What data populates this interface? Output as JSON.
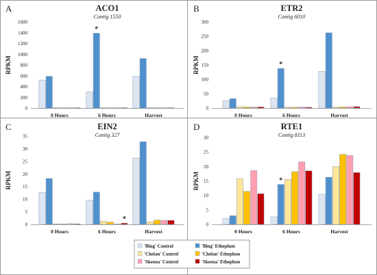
{
  "chart_data": [
    {
      "type": "bar",
      "panel_letter": "A",
      "title": "ACO1",
      "subtitle": "Contig 1550",
      "ylabel": "RPKM",
      "ylim": [
        0,
        1600
      ],
      "yticks": [
        0,
        200,
        400,
        600,
        800,
        1000,
        1200,
        1400,
        1600
      ],
      "categories": [
        "0 Hours",
        "6 Hours",
        "Harvest"
      ],
      "series": [
        {
          "name": "'Bing' Control",
          "values": [
            520,
            300,
            590
          ]
        },
        {
          "name": "'Bing' Ethephon",
          "values": [
            590,
            1390,
            920
          ]
        },
        {
          "name": "'Chelan' Control",
          "values": [
            3,
            3,
            3
          ]
        },
        {
          "name": "'Chelan' Ethephon",
          "values": [
            3,
            3,
            3
          ]
        },
        {
          "name": "'Skeena' Control",
          "values": [
            3,
            3,
            3
          ]
        },
        {
          "name": "'Skeena' Ethephon",
          "values": [
            3,
            3,
            3
          ]
        }
      ],
      "annotations": [
        {
          "category": "6 Hours",
          "series": "'Bing' Ethephon",
          "text": "*"
        }
      ]
    },
    {
      "type": "bar",
      "panel_letter": "B",
      "title": "ETR2",
      "subtitle": "Contig 6010",
      "ylabel": "RPKM",
      "ylim": [
        0,
        300
      ],
      "yticks": [
        0,
        50,
        100,
        150,
        200,
        250,
        300
      ],
      "categories": [
        "0 Hours",
        "6 Hours",
        "Harvest"
      ],
      "series": [
        {
          "name": "'Bing' Control",
          "values": [
            25,
            35,
            128
          ]
        },
        {
          "name": "'Bing' Ethephon",
          "values": [
            33,
            138,
            262
          ]
        },
        {
          "name": "'Chelan' Control",
          "values": [
            5,
            4,
            4
          ]
        },
        {
          "name": "'Chelan' Ethephon",
          "values": [
            4,
            3,
            4
          ]
        },
        {
          "name": "'Skeena' Control",
          "values": [
            4,
            4,
            5
          ]
        },
        {
          "name": "'Skeena' Ethephon",
          "values": [
            4,
            3,
            5
          ]
        }
      ],
      "annotations": [
        {
          "category": "6 Hours",
          "series": "'Bing' Ethephon",
          "text": "*"
        }
      ]
    },
    {
      "type": "bar",
      "panel_letter": "C",
      "title": "EIN2",
      "subtitle": "Contig 327",
      "ylabel": "RPKM",
      "ylim": [
        0,
        35
      ],
      "yticks": [
        0,
        5,
        10,
        15,
        20,
        25,
        30,
        35
      ],
      "categories": [
        "0 Hours",
        "6 Hours",
        "Harvest"
      ],
      "series": [
        {
          "name": "'Bing' Control",
          "values": [
            12.6,
            9.6,
            26.3
          ]
        },
        {
          "name": "'Bing' Ethephon",
          "values": [
            18.2,
            12.8,
            32.8
          ]
        },
        {
          "name": "'Chelan' Control",
          "values": [
            0.2,
            1.3,
            1.0
          ]
        },
        {
          "name": "'Chelan' Ethephon",
          "values": [
            0.1,
            0.9,
            1.7
          ]
        },
        {
          "name": "'Skeena' Control",
          "values": [
            0.3,
            0.1,
            1.6
          ]
        },
        {
          "name": "'Skeena' Ethephon",
          "values": [
            0.2,
            0.5,
            1.6
          ]
        }
      ],
      "annotations": [
        {
          "category": "6 Hours",
          "series": "'Skeena' Ethephon",
          "text": "*"
        }
      ]
    },
    {
      "type": "bar",
      "panel_letter": "D",
      "title": "RTE1",
      "subtitle": "Contig 8113",
      "ylabel": "RPKM",
      "ylim": [
        0,
        30
      ],
      "yticks": [
        0,
        5,
        10,
        15,
        20,
        25,
        30
      ],
      "categories": [
        "0 Hours",
        "6 Hours",
        "Harvest"
      ],
      "series": [
        {
          "name": "'Bing' Control",
          "values": [
            2.0,
            2.6,
            10.4
          ]
        },
        {
          "name": "'Bing' Ethephon",
          "values": [
            3.0,
            13.8,
            16.3
          ]
        },
        {
          "name": "'Chelan' Control",
          "values": [
            15.8,
            15.5,
            20.0
          ]
        },
        {
          "name": "'Chelan' Ethephon",
          "values": [
            11.4,
            18.2,
            24.2
          ]
        },
        {
          "name": "'Skeena' Control",
          "values": [
            18.6,
            21.6,
            23.8
          ]
        },
        {
          "name": "'Skeena' Ethephon",
          "values": [
            10.6,
            18.5,
            17.9
          ]
        }
      ],
      "annotations": [
        {
          "category": "6 Hours",
          "series": "'Bing' Ethephon",
          "text": "*"
        }
      ]
    }
  ],
  "legend": {
    "placement": "bottom-center",
    "items": [
      {
        "label": "'Bing' Control",
        "color": "#dce6f2"
      },
      {
        "label": "'Bing' Ethephon",
        "color": "#4f90cd"
      },
      {
        "label": "'Chelan' Control",
        "color": "#ffe699"
      },
      {
        "label": "'Chelan' Ethephon",
        "color": "#ffc000"
      },
      {
        "label": "'Skeena' Control",
        "color": "#ff9fb0"
      },
      {
        "label": "'Skeena' Ethephon",
        "color": "#c00000"
      }
    ]
  },
  "colors": {
    "series": [
      "#dce6f2",
      "#4f90cd",
      "#ffe699",
      "#ffc000",
      "#ff9fb0",
      "#c00000"
    ],
    "bar_stroke": "#8a9bb0",
    "panel_border": "#999999",
    "axis": "#a6a6a6"
  }
}
